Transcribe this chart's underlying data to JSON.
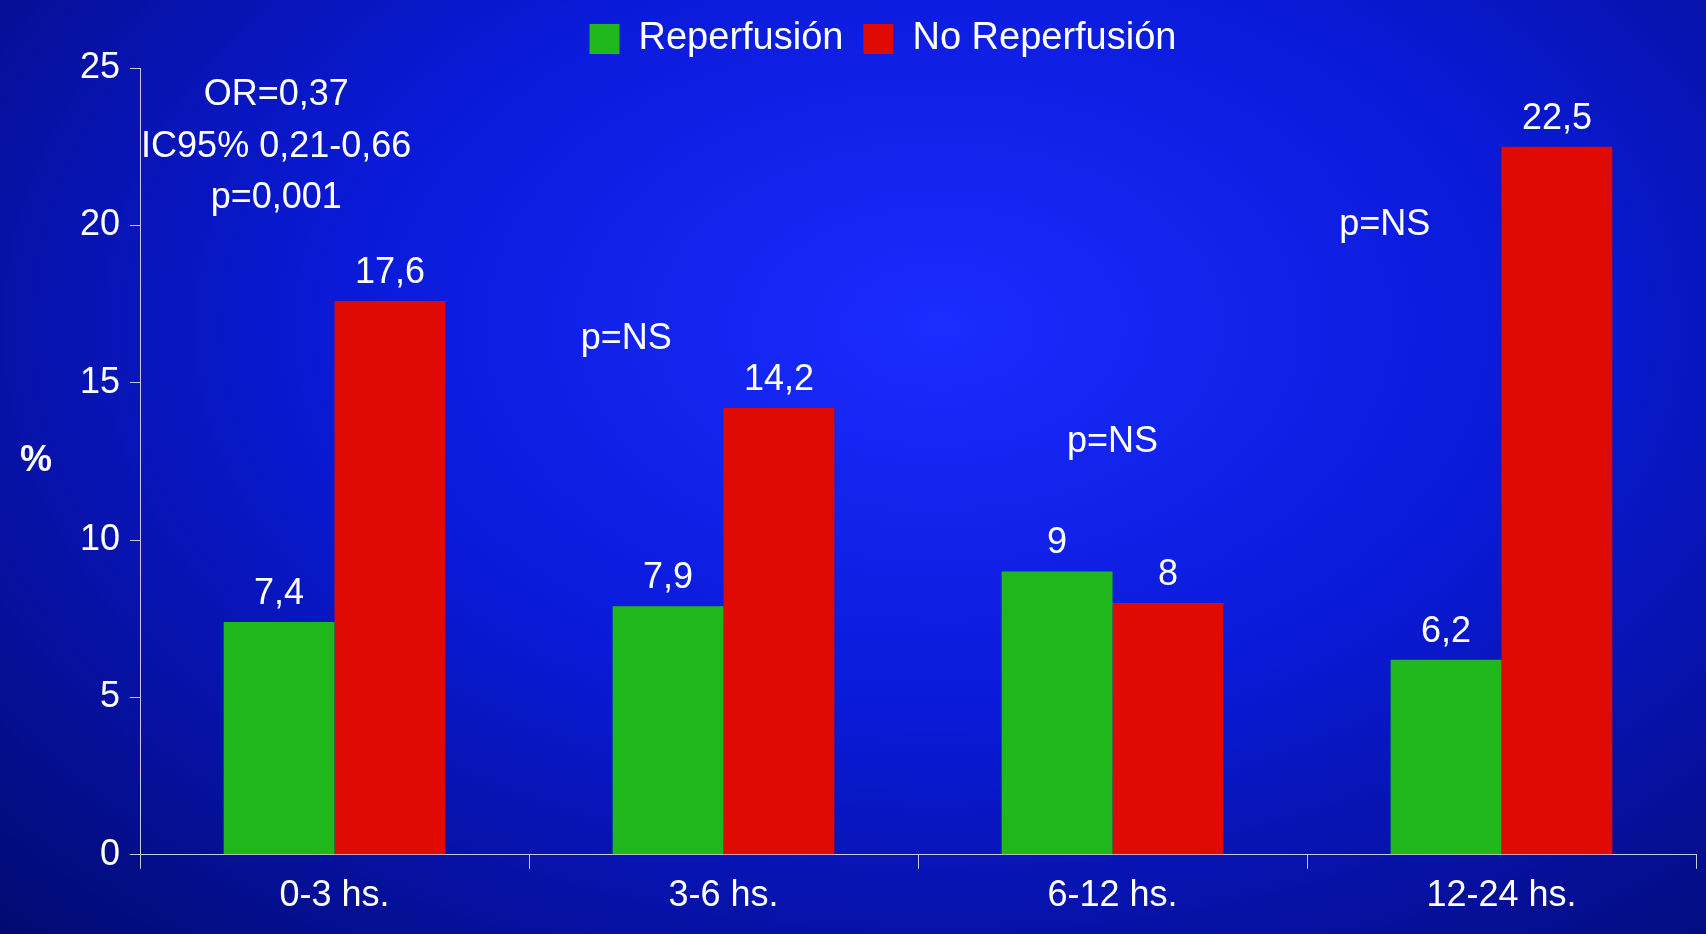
{
  "chart_data": {
    "type": "bar",
    "ylabel": "%",
    "categories": [
      "0-3 hs.",
      "3-6 hs.",
      "6-12 hs.",
      "12-24 hs."
    ],
    "series": [
      {
        "name": "Reperfusión",
        "color": "#1fb71b",
        "values": [
          7.4,
          7.9,
          9,
          6.2
        ],
        "value_labels": [
          "7,4",
          "7,9",
          "9",
          "6,2"
        ]
      },
      {
        "name": "No Reperfusión",
        "color": "#e00a05",
        "values": [
          17.6,
          14.2,
          8,
          22.5
        ],
        "value_labels": [
          "17,6",
          "14,2",
          "8",
          "22,5"
        ]
      }
    ],
    "ylim": [
      0,
      25
    ],
    "yticks": [
      0,
      5,
      10,
      15,
      20,
      25
    ],
    "grid": false,
    "legend": "top",
    "annotations": [
      "OR=0,37",
      "IC95% 0,21-0,66",
      "p=0,001",
      "p=NS",
      "p=NS",
      "p=NS"
    ]
  }
}
